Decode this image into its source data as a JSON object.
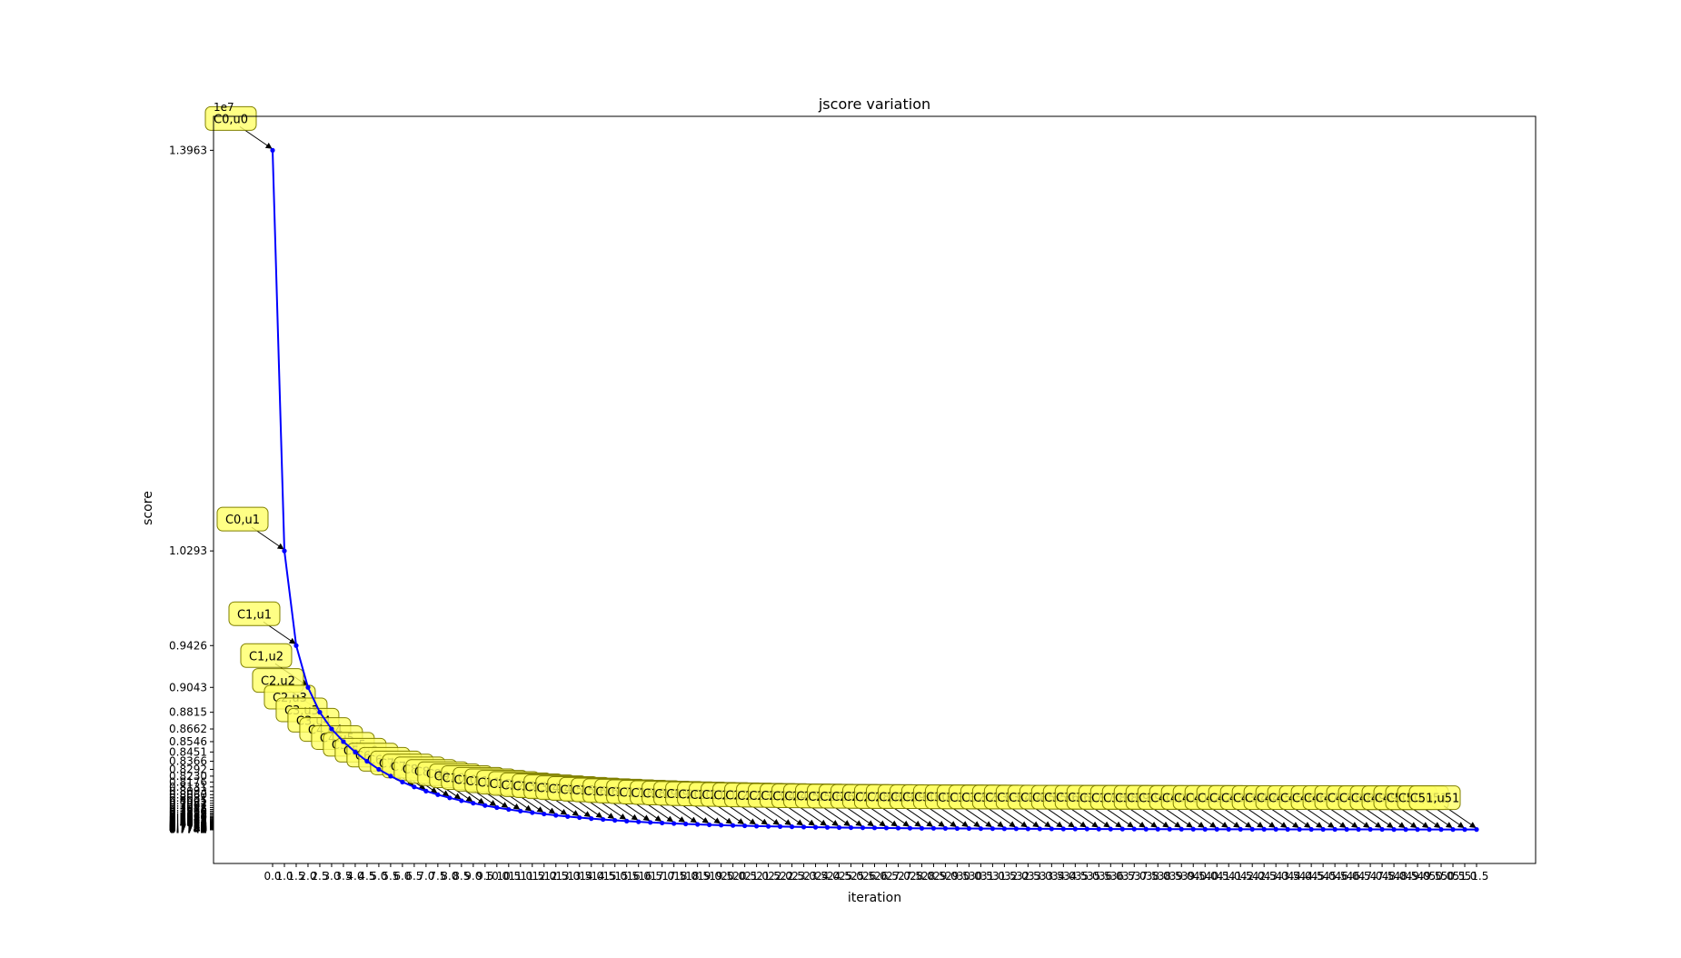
{
  "chart_data": {
    "type": "line",
    "title": "jscore variation",
    "xlabel": "iteration",
    "ylabel": "score",
    "y_offset_label": "1e7",
    "grid": false,
    "line_color": "#0000ff",
    "annotation_box_color": "#ffff66",
    "yticks_labeled": [
      "1.3963",
      "1.0293",
      "0.9426",
      "0.9043",
      "0.8815",
      "0.8662",
      "0.8546",
      "0.8451",
      "0.8366",
      "0.8292",
      "0.8230"
    ],
    "series": [
      {
        "x": [
          0.0,
          1.0,
          1.5,
          2.0,
          2.5,
          3.0,
          3.5,
          4.0,
          4.5,
          5.0,
          5.5,
          6.0,
          6.5,
          7.0,
          7.5,
          8.0,
          8.5,
          9.0,
          9.5,
          10.0,
          10.5,
          11.0,
          11.5,
          12.0,
          12.5,
          13.0,
          13.5,
          14.0,
          14.5,
          15.0,
          15.5,
          16.0,
          16.5,
          17.0,
          17.5,
          18.0,
          18.5,
          19.0,
          19.5,
          20.0,
          20.5,
          21.0,
          21.5,
          22.0,
          22.5,
          23.0,
          23.5,
          24.0,
          24.5,
          25.0,
          25.5,
          26.0,
          26.5,
          27.0,
          27.5,
          28.0,
          28.5,
          29.0,
          29.5,
          30.0,
          30.5,
          31.0,
          31.5,
          32.0,
          32.5,
          33.0,
          33.5,
          34.0,
          34.5,
          35.0,
          35.5,
          36.0,
          36.5,
          37.0,
          37.5,
          38.0,
          38.5,
          39.0,
          39.5,
          40.0,
          40.5,
          41.0,
          41.5,
          42.0,
          42.5,
          43.0,
          43.5,
          44.0,
          44.5,
          45.0,
          45.5,
          46.0,
          46.5,
          47.0,
          47.5,
          48.0,
          48.5,
          49.0,
          49.5,
          50.0,
          50.5,
          51.0,
          51.5
        ],
        "values": [
          1.3963,
          1.0293,
          0.9426,
          0.9043,
          0.8815,
          0.8662,
          0.8546,
          0.8451,
          0.8366,
          0.8292,
          0.823,
          0.8176,
          0.8131,
          0.8093,
          0.806,
          0.8031,
          0.8005,
          0.7982,
          0.7961,
          0.7942,
          0.7925,
          0.791,
          0.7896,
          0.7883,
          0.7871,
          0.786,
          0.785,
          0.7841,
          0.7833,
          0.7825,
          0.7818,
          0.7812,
          0.7806,
          0.7801,
          0.7796,
          0.7792,
          0.7788,
          0.7784,
          0.7781,
          0.7778,
          0.7775,
          0.7772,
          0.777,
          0.7768,
          0.7766,
          0.7764,
          0.7762,
          0.7761,
          0.7759,
          0.7758,
          0.7757,
          0.7756,
          0.7755,
          0.7754,
          0.7753,
          0.7752,
          0.7752,
          0.7751,
          0.775,
          0.775,
          0.7749,
          0.7749,
          0.7748,
          0.7748,
          0.7747,
          0.7747,
          0.7747,
          0.7746,
          0.7746,
          0.7746,
          0.7745,
          0.7745,
          0.7745,
          0.7745,
          0.7744,
          0.7744,
          0.7744,
          0.7744,
          0.7744,
          0.7743,
          0.7743,
          0.7743,
          0.7743,
          0.7743,
          0.7743,
          0.7743,
          0.7742,
          0.7742,
          0.7742,
          0.7742,
          0.7742,
          0.7742,
          0.7742,
          0.7742,
          0.7742,
          0.7741,
          0.7741,
          0.7741,
          0.7741,
          0.7741,
          0.7741,
          0.7741,
          0.7741
        ],
        "labels": [
          "C0,u0",
          "C0,u1",
          "C1,u1",
          "C1,u2",
          "C2,u2",
          "C2,u3",
          "C3,u3",
          "C3,u4",
          "C4,u4",
          "C4,u5",
          "C5,u5",
          "C5,u6",
          "C6,u6",
          "C6,u7",
          "C7,u7",
          "C7,u8",
          "C8,u8",
          "C8,u9",
          "C9,u9",
          "C9,u10",
          "C10,u10",
          "C10,u11",
          "C11,u11",
          "C11,u12",
          "C12,u12",
          "C12,u13",
          "C13,u13",
          "C13,u14",
          "C14,u14",
          "C14,u15",
          "C15,u15",
          "C15,u16",
          "C16,u16",
          "C16,u17",
          "C17,u17",
          "C17,u18",
          "C18,u18",
          "C18,u19",
          "C19,u19",
          "C19,u20",
          "C20,u20",
          "C20,u21",
          "C21,u21",
          "C21,u22",
          "C22,u22",
          "C22,u23",
          "C23,u23",
          "C23,u24",
          "C24,u24",
          "C24,u25",
          "C25,u25",
          "C25,u26",
          "C26,u26",
          "C26,u27",
          "C27,u27",
          "C27,u28",
          "C28,u28",
          "C28,u29",
          "C29,u29",
          "C29,u30",
          "C30,u30",
          "C30,u31",
          "C31,u31",
          "C31,u32",
          "C32,u32",
          "C32,u33",
          "C33,u33",
          "C33,u34",
          "C34,u34",
          "C34,u35",
          "C35,u35",
          "C35,u36",
          "C36,u36",
          "C36,u37",
          "C37,u37",
          "C37,u38",
          "C38,u38",
          "C38,u39",
          "C39,u39",
          "C39,u40",
          "C40,u40",
          "C40,u41",
          "C41,u41",
          "C41,u42",
          "C42,u42",
          "C42,u43",
          "C43,u43",
          "C43,u44",
          "C44,u44",
          "C44,u45",
          "C45,u45",
          "C45,u46",
          "C46,u46",
          "C46,u47",
          "C47,u47",
          "C47,u48",
          "C48,u48",
          "C48,u49",
          "C49,u49",
          "C49,u50",
          "C50,u50",
          "C50,u51",
          "C51,u51"
        ]
      }
    ]
  }
}
